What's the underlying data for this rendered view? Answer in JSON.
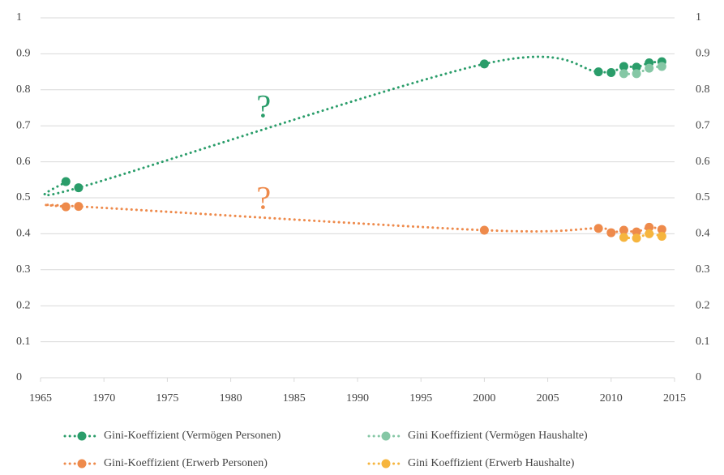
{
  "chart_data": {
    "type": "line",
    "xlim": [
      1965,
      2015
    ],
    "xticks": [
      1965,
      1970,
      1975,
      1980,
      1985,
      1990,
      1995,
      2000,
      2005,
      2010,
      2015
    ],
    "ylim": [
      0,
      1
    ],
    "yticks": [
      0,
      0.1,
      0.2,
      0.3,
      0.4,
      0.5,
      0.6,
      0.7,
      0.8,
      0.9,
      1
    ],
    "y2lim": [
      0,
      1
    ],
    "y2ticks": [
      0,
      0.1,
      0.2,
      0.3,
      0.4,
      0.5,
      0.6,
      0.7,
      0.8,
      0.9,
      1
    ],
    "grid": true,
    "legend": "bottom",
    "annotations": [
      {
        "text": "?",
        "color": "#2a9d6a"
      },
      {
        "text": "?",
        "color": "#ee8a4b"
      }
    ],
    "series": [
      {
        "name": "Gini-Koeffizient (Vermögen Personen)",
        "color": "#2a9d6a",
        "x": [
          1967,
          1968,
          2000,
          2009,
          2010,
          2011,
          2012,
          2013,
          2014
        ],
        "values": [
          0.545,
          0.528,
          0.872,
          0.85,
          0.848,
          0.865,
          0.863,
          0.875,
          0.878
        ]
      },
      {
        "name": "Gini Koeffizient (Vermögen Haushalte)",
        "color": "#85c7a5",
        "x": [
          2011,
          2012,
          2013,
          2014
        ],
        "values": [
          0.845,
          0.845,
          0.86,
          0.865
        ]
      },
      {
        "name": "Gini-Koeffizient (Erwerb Personen)",
        "color": "#ee8a4b",
        "x": [
          1967,
          1968,
          2000,
          2009,
          2010,
          2011,
          2012,
          2013,
          2014
        ],
        "values": [
          0.475,
          0.476,
          0.41,
          0.415,
          0.403,
          0.41,
          0.405,
          0.418,
          0.412
        ]
      },
      {
        "name": "Gini Koeffizient (Erwerb Haushalte)",
        "color": "#f6b53e",
        "x": [
          2011,
          2012,
          2013,
          2014
        ],
        "values": [
          0.39,
          0.388,
          0.4,
          0.393
        ]
      }
    ]
  }
}
